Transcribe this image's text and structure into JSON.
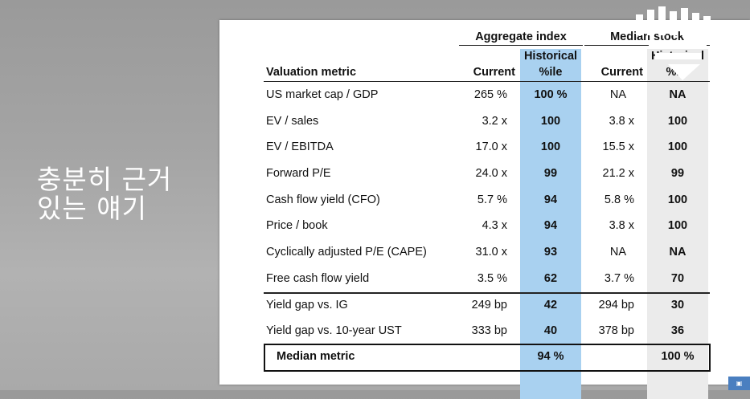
{
  "caption": {
    "line1": "충분히 근거",
    "line2": "있는 얘기"
  },
  "table": {
    "group_aggregate": "Aggregate index",
    "group_median": "Median stock",
    "col_metric": "Valuation metric",
    "col_current": "Current",
    "col_historical_line1": "Historical",
    "col_historical_line2": "%ile",
    "rows": [
      {
        "metric": "US market cap / GDP",
        "agg_current": "265 %",
        "agg_hist": "100 %",
        "med_current": "NA",
        "med_hist": "NA"
      },
      {
        "metric": "EV / sales",
        "agg_current": "3.2 x",
        "agg_hist": "100",
        "med_current": "3.8 x",
        "med_hist": "100"
      },
      {
        "metric": "EV / EBITDA",
        "agg_current": "17.0 x",
        "agg_hist": "100",
        "med_current": "15.5 x",
        "med_hist": "100"
      },
      {
        "metric": "Forward P/E",
        "agg_current": "24.0 x",
        "agg_hist": "99",
        "med_current": "21.2 x",
        "med_hist": "99"
      },
      {
        "metric": "Cash flow yield (CFO)",
        "agg_current": "5.7 %",
        "agg_hist": "94",
        "med_current": "5.8 %",
        "med_hist": "100"
      },
      {
        "metric": "Price / book",
        "agg_current": "4.3 x",
        "agg_hist": "94",
        "med_current": "3.8 x",
        "med_hist": "100"
      },
      {
        "metric": "Cyclically adjusted P/E (CAPE)",
        "agg_current": "31.0 x",
        "agg_hist": "93",
        "med_current": "NA",
        "med_hist": "NA"
      },
      {
        "metric": "Free cash flow yield",
        "agg_current": "3.5 %",
        "agg_hist": "62",
        "med_current": "3.7 %",
        "med_hist": "70"
      },
      {
        "metric": "Yield gap vs. IG",
        "agg_current": "249 bp",
        "agg_hist": "42",
        "med_current": "294 bp",
        "med_hist": "30"
      },
      {
        "metric": "Yield gap vs. 10-year UST",
        "agg_current": "333 bp",
        "agg_hist": "40",
        "med_current": "378 bp",
        "med_hist": "36"
      }
    ],
    "median": {
      "label": "Median metric",
      "agg_hist": "94 %",
      "med_hist": "100 %"
    }
  },
  "colors": {
    "aggregate_highlight": "#a9d1f0",
    "median_highlight": "#ebebeb"
  },
  "logo_icon": "channel-logo-icon"
}
